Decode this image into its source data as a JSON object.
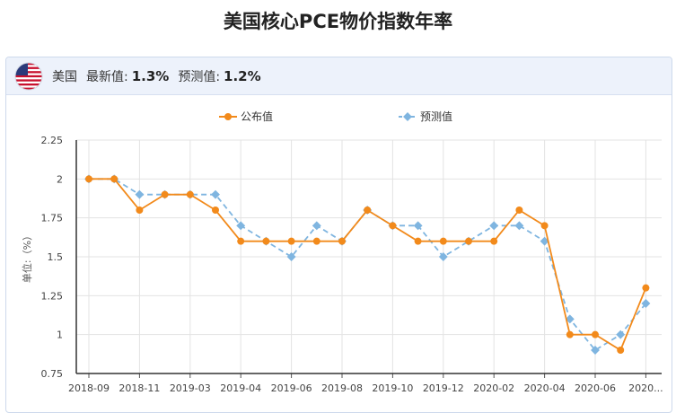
{
  "title": "美国核心PCE物价指数年率",
  "header": {
    "country": "美国",
    "latest_label": "最新值:",
    "latest_value": "1.3%",
    "forecast_label": "预测值:",
    "forecast_value": "1.2%",
    "flag_icon": "us-flag-icon"
  },
  "colors": {
    "published": "#f28a1b",
    "forecast": "#7fb5e0"
  },
  "chart_data": {
    "type": "line",
    "ylabel": "单位:（%）",
    "ylim": [
      0.75,
      2.25
    ],
    "yticks": [
      "2.25",
      "2",
      "1.75",
      "1.5",
      "1.25",
      "1",
      "0.75"
    ],
    "ytick_values": [
      2.25,
      2,
      1.75,
      1.5,
      1.25,
      1,
      0.75
    ],
    "xtick_labels": [
      "2018-09",
      "2018-11",
      "2019-03",
      "2019-04",
      "2019-06",
      "2019-08",
      "2019-10",
      "2019-12",
      "2020-02",
      "2020-04",
      "2020-06",
      "2020..."
    ],
    "xtick_indices": [
      0,
      2,
      4,
      6,
      8,
      10,
      12,
      14,
      16,
      18,
      20,
      22
    ],
    "legend_position": "top",
    "grid": true,
    "series": [
      {
        "name": "公布值",
        "values": [
          2.0,
          2.0,
          1.8,
          1.9,
          1.9,
          1.8,
          1.6,
          1.6,
          1.6,
          1.6,
          1.6,
          1.8,
          1.7,
          1.6,
          1.6,
          1.6,
          1.6,
          1.8,
          1.7,
          1.0,
          1.0,
          0.9,
          1.3
        ]
      },
      {
        "name": "预测值",
        "values": [
          2.0,
          2.0,
          1.9,
          1.9,
          1.9,
          1.9,
          1.7,
          1.6,
          1.5,
          1.7,
          1.6,
          1.8,
          1.7,
          1.7,
          1.5,
          1.6,
          1.7,
          1.7,
          1.6,
          1.1,
          0.9,
          1.0,
          1.2
        ]
      }
    ]
  }
}
